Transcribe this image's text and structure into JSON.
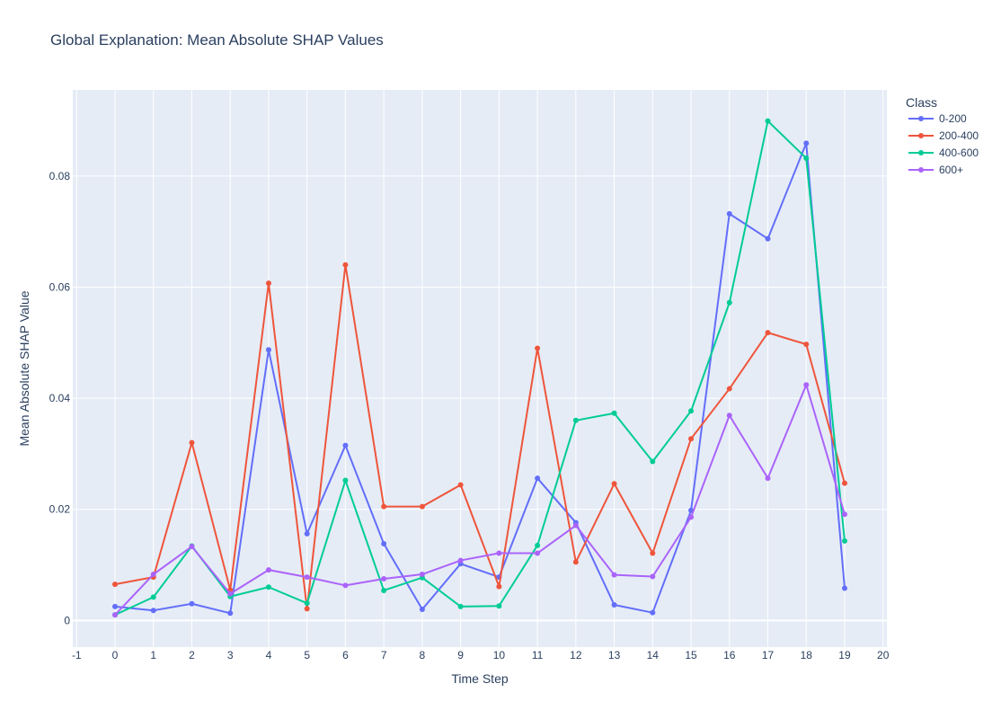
{
  "chart_data": {
    "type": "line",
    "title": "Global Explanation: Mean Absolute SHAP Values",
    "xlabel": "Time Step",
    "ylabel": "Mean Absolute SHAP Value",
    "legend_title": "Class",
    "legend_position": "top-right",
    "grid": true,
    "xlim": [
      -1.1,
      20.1
    ],
    "ylim": [
      -0.0048,
      0.0955
    ],
    "x_ticks": [
      -1,
      0,
      1,
      2,
      3,
      4,
      5,
      6,
      7,
      8,
      9,
      10,
      11,
      12,
      13,
      14,
      15,
      16,
      17,
      18,
      19,
      20
    ],
    "y_ticks": [
      0,
      0.02,
      0.04,
      0.06,
      0.08
    ],
    "y_tick_labels": [
      "0",
      "0.02",
      "0.04",
      "0.06",
      "0.08"
    ],
    "x": [
      0,
      1,
      2,
      3,
      4,
      5,
      6,
      7,
      8,
      9,
      10,
      11,
      12,
      13,
      14,
      15,
      16,
      17,
      18,
      19
    ],
    "series": [
      {
        "name": "0-200",
        "color": "#636efa",
        "values": [
          0.0025,
          0.0018,
          0.003,
          0.0013,
          0.0487,
          0.0156,
          0.0315,
          0.0138,
          0.002,
          0.0102,
          0.0078,
          0.0256,
          0.0176,
          0.0028,
          0.0014,
          0.0198,
          0.0732,
          0.0687,
          0.0859,
          0.0058
        ]
      },
      {
        "name": "200-400",
        "color": "#ef553b",
        "values": [
          0.0065,
          0.0078,
          0.032,
          0.0055,
          0.0607,
          0.0021,
          0.064,
          0.0205,
          0.0205,
          0.0244,
          0.0061,
          0.049,
          0.0105,
          0.0246,
          0.0121,
          0.0327,
          0.0417,
          0.0518,
          0.0497,
          0.0247
        ]
      },
      {
        "name": "400-600",
        "color": "#00cc96",
        "values": [
          0.001,
          0.0042,
          0.0134,
          0.0043,
          0.006,
          0.0031,
          0.0252,
          0.0054,
          0.0077,
          0.0025,
          0.0026,
          0.0135,
          0.036,
          0.0373,
          0.0286,
          0.0377,
          0.0572,
          0.0899,
          0.0832,
          0.0143
        ]
      },
      {
        "name": "600+",
        "color": "#ab63fa",
        "values": [
          0.001,
          0.0083,
          0.0133,
          0.0048,
          0.0091,
          0.0078,
          0.0063,
          0.0075,
          0.0083,
          0.0108,
          0.0121,
          0.0121,
          0.0171,
          0.0082,
          0.0079,
          0.0186,
          0.0369,
          0.0256,
          0.0424,
          0.0191
        ]
      }
    ]
  }
}
